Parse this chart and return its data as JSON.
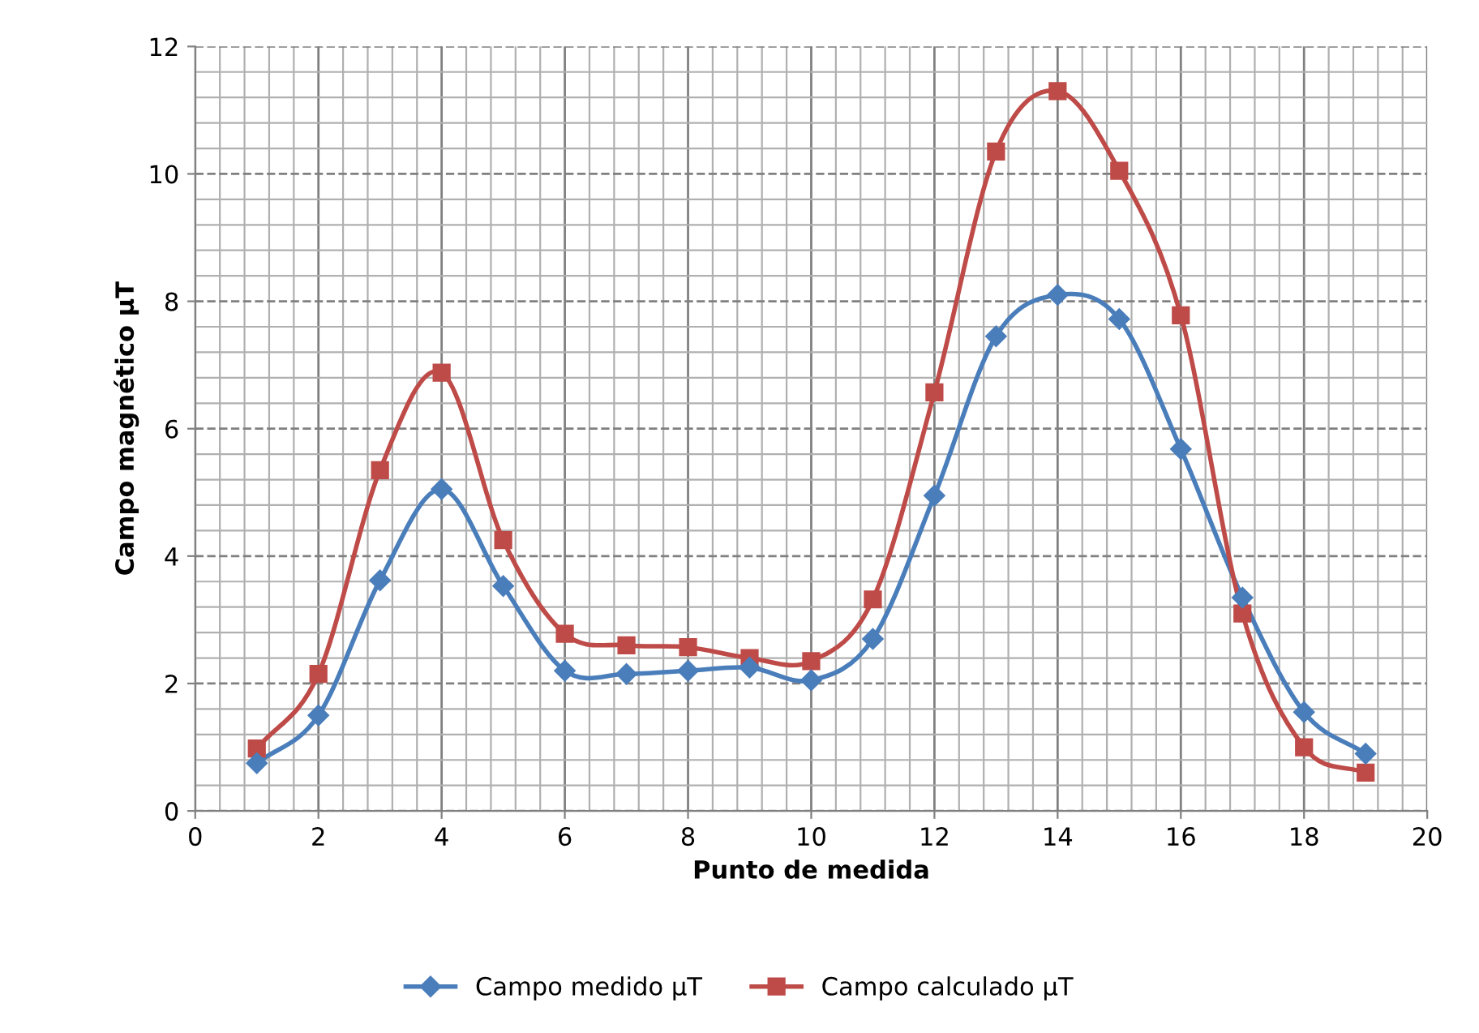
{
  "chart_data": {
    "type": "line",
    "xlabel": "Punto de medida",
    "ylabel": "Campo magnético µT",
    "x": [
      1,
      2,
      3,
      4,
      5,
      6,
      7,
      8,
      9,
      10,
      11,
      12,
      13,
      14,
      15,
      16,
      17,
      18,
      19
    ],
    "series": [
      {
        "name": "Campo medido µT",
        "color": "#4a7ebb",
        "marker": "diamond",
        "values": [
          0.75,
          1.5,
          3.62,
          5.05,
          3.53,
          2.2,
          2.15,
          2.2,
          2.25,
          2.05,
          2.7,
          4.95,
          7.45,
          8.1,
          7.72,
          5.68,
          3.35,
          1.55,
          0.9
        ]
      },
      {
        "name": "Campo calculado µT",
        "color": "#be4b48",
        "marker": "square",
        "values": [
          0.98,
          2.15,
          5.35,
          6.88,
          4.25,
          2.78,
          2.6,
          2.57,
          2.4,
          2.35,
          3.32,
          6.57,
          10.35,
          11.3,
          10.05,
          7.78,
          3.1,
          1.0,
          0.6
        ]
      }
    ],
    "xlim": [
      0,
      20
    ],
    "xticks": [
      0,
      2,
      4,
      6,
      8,
      10,
      12,
      14,
      16,
      18,
      20
    ],
    "ylim": [
      0,
      12
    ],
    "yticks": [
      0,
      2,
      4,
      6,
      8,
      10,
      12
    ],
    "grid": true,
    "legend": "bottom",
    "line_style": "solid"
  }
}
